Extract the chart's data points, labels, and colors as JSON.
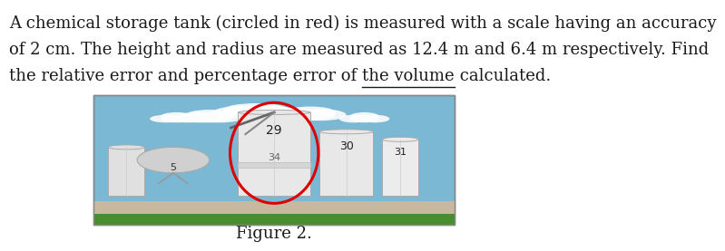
{
  "background_color": "#ffffff",
  "text_lines": [
    "A chemical storage tank (circled in red) is measured with a scale having an accuracy",
    "of 2 cm. The height and radius are measured as 12.4 m and 6.4 m respectively. Find",
    "the relative error and percentage error of the volume calculated."
  ],
  "underline_word": "the volume",
  "figure_caption": "Figure 2.",
  "font_size_text": 13,
  "font_size_caption": 13,
  "text_color": "#1a1a1a",
  "red_circle_color": "#dd0000",
  "tank_labels": [
    "29",
    "30",
    "31",
    "5"
  ],
  "tank_label_mid": "34"
}
